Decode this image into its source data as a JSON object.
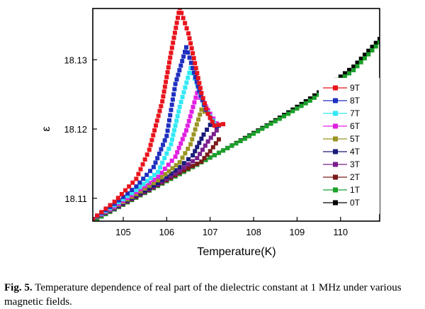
{
  "caption": {
    "label": "Fig. 5.",
    "text": "Temperature dependence of real part of the dielectric constant at 1 MHz under various magnetic fields."
  },
  "chart_data": {
    "type": "scatter",
    "xlabel": "Temperature(K)",
    "ylabel": "ε",
    "xlim": [
      104.3,
      110.9
    ],
    "ylim": [
      18.1067,
      18.1374
    ],
    "xticks": [
      105,
      106,
      107,
      108,
      109,
      110
    ],
    "yticks": [
      18.11,
      18.12,
      18.13
    ],
    "ytick_labels": [
      "18.11",
      "18.12",
      "18.13"
    ],
    "grid": false,
    "legend_position": "right",
    "series": [
      {
        "name": "9T",
        "color": "#e8141c",
        "marker": "square",
        "x": [
          104.3,
          104.8,
          105.3,
          105.6,
          105.9,
          106.1,
          106.3,
          106.5,
          106.65,
          106.8,
          106.95,
          107.1,
          107.3
        ],
        "y": [
          18.107,
          18.1095,
          18.1128,
          18.117,
          18.124,
          18.131,
          18.1375,
          18.1338,
          18.1295,
          18.1252,
          18.1222,
          18.1205,
          18.1207
        ]
      },
      {
        "name": "8T",
        "color": "#1f2fbf",
        "marker": "square",
        "x": [
          104.3,
          104.8,
          105.3,
          105.7,
          106.0,
          106.2,
          106.45,
          106.6,
          106.75,
          106.9,
          107.05,
          107.2
        ],
        "y": [
          18.107,
          18.1092,
          18.1117,
          18.1145,
          18.119,
          18.1265,
          18.1318,
          18.1288,
          18.1255,
          18.1228,
          18.121,
          18.1205
        ]
      },
      {
        "name": "7T",
        "color": "#33e8f5",
        "marker": "square",
        "x": [
          104.3,
          104.8,
          105.3,
          105.8,
          106.1,
          106.3,
          106.55,
          106.7,
          106.85,
          107.0,
          107.15
        ],
        "y": [
          18.107,
          18.109,
          18.1112,
          18.1138,
          18.1178,
          18.1232,
          18.1288,
          18.1265,
          18.1236,
          18.1218,
          18.1206
        ]
      },
      {
        "name": "6T",
        "color": "#e020e0",
        "marker": "square",
        "x": [
          104.3,
          104.8,
          105.3,
          105.8,
          106.2,
          106.45,
          106.7,
          106.85,
          107.0,
          107.15
        ],
        "y": [
          18.107,
          18.1088,
          18.1109,
          18.1131,
          18.116,
          18.1198,
          18.1252,
          18.1238,
          18.1222,
          18.1208
        ]
      },
      {
        "name": "5T",
        "color": "#9a9422",
        "marker": "square",
        "x": [
          104.3,
          104.8,
          105.3,
          105.8,
          106.3,
          106.55,
          106.8,
          106.95,
          107.1
        ],
        "y": [
          18.107,
          18.1087,
          18.1106,
          18.1126,
          18.1152,
          18.1178,
          18.1228,
          18.1222,
          18.1208
        ]
      },
      {
        "name": "4T",
        "color": "#1a1a7a",
        "marker": "square",
        "x": [
          104.3,
          104.8,
          105.3,
          105.8,
          106.3,
          106.6,
          106.85,
          107.0,
          107.15
        ],
        "y": [
          18.107,
          18.1086,
          18.1104,
          18.1122,
          18.1145,
          18.1162,
          18.1192,
          18.1206,
          18.1204
        ]
      },
      {
        "name": "3T",
        "color": "#7a1e8c",
        "marker": "square",
        "x": [
          104.3,
          104.8,
          105.3,
          105.8,
          106.3,
          106.7,
          106.95,
          107.15
        ],
        "y": [
          18.107,
          18.1085,
          18.1103,
          18.112,
          18.114,
          18.1158,
          18.1182,
          18.1198
        ]
      },
      {
        "name": "2T",
        "color": "#7a1a1a",
        "marker": "square",
        "x": [
          104.3,
          104.8,
          105.3,
          105.8,
          106.3,
          106.8,
          107.0,
          107.2
        ],
        "y": [
          18.107,
          18.1085,
          18.1102,
          18.1119,
          18.1137,
          18.1153,
          18.1168,
          18.1185
        ]
      },
      {
        "name": "1T",
        "color": "#1aa02a",
        "marker": "square",
        "x": [
          104.3,
          104.8,
          105.3,
          105.8,
          106.3,
          106.8,
          107.3,
          107.8,
          108.3,
          108.8,
          109.3,
          109.8,
          110.3,
          110.9
        ],
        "y": [
          18.1067,
          18.1084,
          18.1101,
          18.1118,
          18.1135,
          18.1152,
          18.1169,
          18.1186,
          18.1204,
          18.1222,
          18.1241,
          18.1262,
          18.1285,
          18.1325
        ]
      },
      {
        "name": "0T",
        "color": "#000000",
        "marker": "square",
        "x": [
          104.3,
          104.8,
          105.3,
          105.8,
          106.3,
          106.8,
          107.3,
          107.8,
          108.3,
          108.8,
          109.3,
          109.8,
          110.3,
          110.9
        ],
        "y": [
          18.1067,
          18.1084,
          18.1101,
          18.1118,
          18.1135,
          18.1152,
          18.1169,
          18.1187,
          18.1205,
          18.1224,
          18.1244,
          18.1266,
          18.129,
          18.133
        ]
      }
    ]
  }
}
